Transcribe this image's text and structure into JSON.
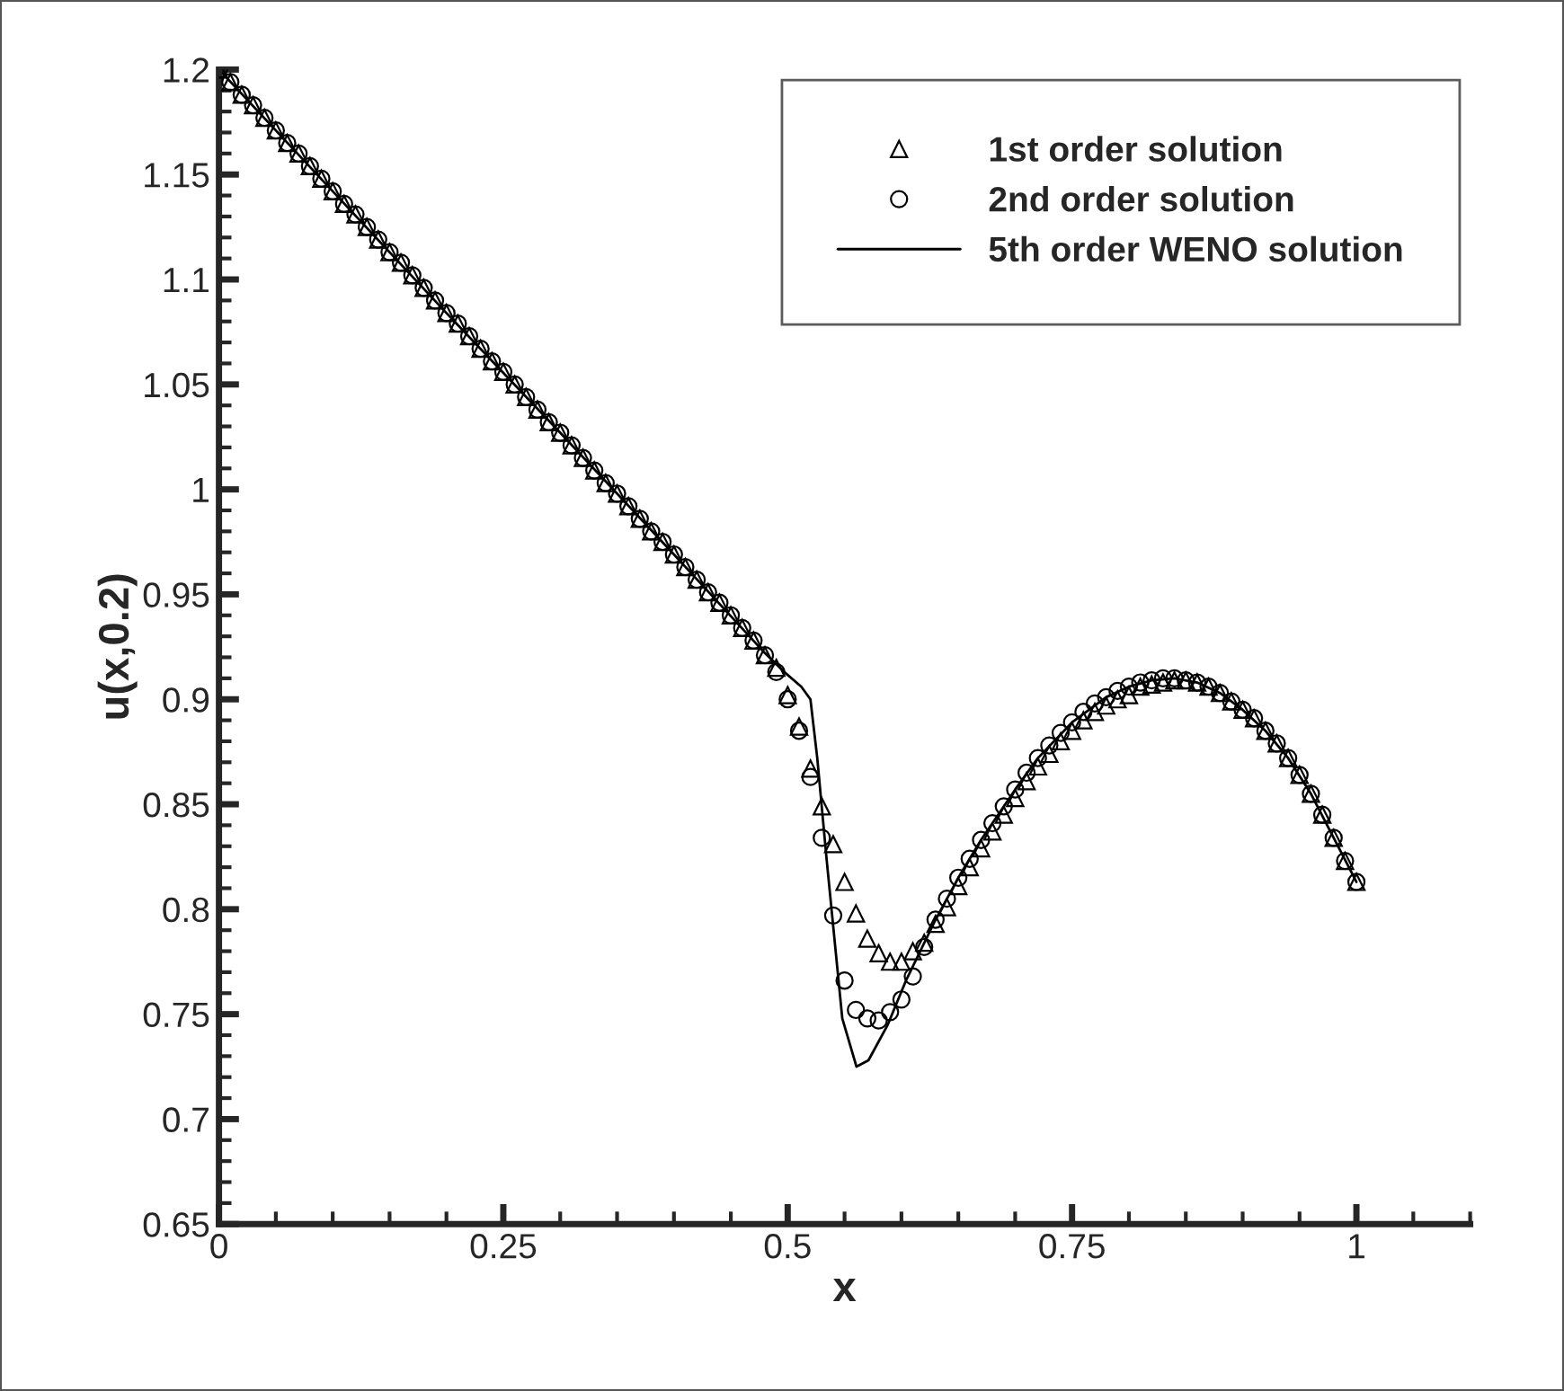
{
  "chart_data": {
    "type": "scatter",
    "xlabel": "x",
    "ylabel": "u(x,0.2)",
    "xlim": [
      0,
      1.1
    ],
    "ylim": [
      0.65,
      1.2
    ],
    "xticks": [
      0,
      0.25,
      0.5,
      0.75,
      1,
      {
        "value": 0.05,
        "label": null
      },
      {
        "value": 0.1,
        "label": null
      },
      {
        "value": 0.15,
        "label": null
      },
      {
        "value": 0.2,
        "label": null
      },
      {
        "value": 0.3,
        "label": null
      },
      {
        "value": 0.35,
        "label": null
      },
      {
        "value": 0.4,
        "label": null
      },
      {
        "value": 0.45,
        "label": null
      },
      {
        "value": 0.55,
        "label": null
      },
      {
        "value": 0.6,
        "label": null
      },
      {
        "value": 0.65,
        "label": null
      },
      {
        "value": 0.7,
        "label": null
      },
      {
        "value": 0.8,
        "label": null
      },
      {
        "value": 0.85,
        "label": null
      },
      {
        "value": 0.9,
        "label": null
      },
      {
        "value": 0.95,
        "label": null
      },
      {
        "value": 1.05,
        "label": null
      },
      {
        "value": 1.1,
        "label": null
      }
    ],
    "yticks": [
      0.65,
      0.7,
      0.75,
      0.8,
      0.85,
      0.9,
      0.95,
      1,
      1.05,
      1.1,
      1.15,
      1.2,
      {
        "value": 0.66,
        "label": null
      },
      {
        "value": 0.67,
        "label": null
      },
      {
        "value": 0.68,
        "label": null
      },
      {
        "value": 0.69,
        "label": null
      },
      {
        "value": 0.71,
        "label": null
      },
      {
        "value": 0.72,
        "label": null
      },
      {
        "value": 0.73,
        "label": null
      },
      {
        "value": 0.74,
        "label": null
      },
      {
        "value": 0.76,
        "label": null
      },
      {
        "value": 0.77,
        "label": null
      },
      {
        "value": 0.78,
        "label": null
      },
      {
        "value": 0.79,
        "label": null
      },
      {
        "value": 0.81,
        "label": null
      },
      {
        "value": 0.82,
        "label": null
      },
      {
        "value": 0.83,
        "label": null
      },
      {
        "value": 0.84,
        "label": null
      },
      {
        "value": 0.86,
        "label": null
      },
      {
        "value": 0.87,
        "label": null
      },
      {
        "value": 0.88,
        "label": null
      },
      {
        "value": 0.89,
        "label": null
      },
      {
        "value": 0.91,
        "label": null
      },
      {
        "value": 0.92,
        "label": null
      },
      {
        "value": 0.93,
        "label": null
      },
      {
        "value": 0.94,
        "label": null
      },
      {
        "value": 0.96,
        "label": null
      },
      {
        "value": 0.97,
        "label": null
      },
      {
        "value": 0.98,
        "label": null
      },
      {
        "value": 0.99,
        "label": null
      },
      {
        "value": 1.01,
        "label": null
      },
      {
        "value": 1.02,
        "label": null
      },
      {
        "value": 1.03,
        "label": null
      },
      {
        "value": 1.04,
        "label": null
      },
      {
        "value": 1.06,
        "label": null
      },
      {
        "value": 1.07,
        "label": null
      },
      {
        "value": 1.08,
        "label": null
      },
      {
        "value": 1.09,
        "label": null
      },
      {
        "value": 1.11,
        "label": null
      },
      {
        "value": 1.12,
        "label": null
      },
      {
        "value": 1.13,
        "label": null
      },
      {
        "value": 1.14,
        "label": null
      },
      {
        "value": 1.16,
        "label": null
      },
      {
        "value": 1.17,
        "label": null
      },
      {
        "value": 1.18,
        "label": null
      },
      {
        "value": 1.19,
        "label": null
      }
    ],
    "x": [
      0,
      0.01,
      0.02,
      0.03,
      0.04,
      0.05,
      0.06,
      0.07,
      0.08,
      0.09,
      0.1,
      0.11,
      0.12,
      0.13,
      0.14,
      0.15,
      0.16,
      0.17,
      0.18,
      0.19,
      0.2,
      0.21,
      0.22,
      0.23,
      0.24,
      0.25,
      0.26,
      0.27,
      0.28,
      0.29,
      0.3,
      0.31,
      0.32,
      0.33,
      0.34,
      0.35,
      0.36,
      0.37,
      0.38,
      0.39,
      0.4,
      0.41,
      0.42,
      0.43,
      0.44,
      0.45,
      0.46,
      0.47,
      0.48,
      0.49,
      0.5,
      0.51,
      0.52,
      0.53,
      0.54,
      0.55,
      0.56,
      0.57,
      0.58,
      0.59,
      0.6,
      0.61,
      0.62,
      0.63,
      0.64,
      0.65,
      0.66,
      0.67,
      0.68,
      0.69,
      0.7,
      0.71,
      0.72,
      0.73,
      0.74,
      0.75,
      0.76,
      0.77,
      0.78,
      0.79,
      0.8,
      0.81,
      0.82,
      0.83,
      0.84,
      0.85,
      0.86,
      0.87,
      0.88,
      0.89,
      0.9,
      0.91,
      0.92,
      0.93,
      0.94,
      0.95,
      0.96,
      0.97,
      0.98,
      0.99,
      1
    ],
    "legend": "top right",
    "series": [
      {
        "name": "1st order solution",
        "color": "#000000",
        "marker": "triangle",
        "values": [
          1.2,
          1.194,
          1.188,
          1.183,
          1.177,
          1.171,
          1.165,
          1.16,
          1.154,
          1.148,
          1.142,
          1.136,
          1.131,
          1.125,
          1.119,
          1.113,
          1.108,
          1.102,
          1.096,
          1.09,
          1.084,
          1.079,
          1.073,
          1.067,
          1.061,
          1.056,
          1.05,
          1.044,
          1.038,
          1.032,
          1.027,
          1.021,
          1.015,
          1.009,
          1.003,
          0.998,
          0.992,
          0.986,
          0.98,
          0.975,
          0.969,
          0.963,
          0.957,
          0.951,
          0.946,
          0.94,
          0.934,
          0.928,
          0.921,
          0.915,
          0.902,
          0.887,
          0.867,
          0.849,
          0.831,
          0.813,
          0.798,
          0.786,
          0.779,
          0.775,
          0.775,
          0.78,
          0.784,
          0.793,
          0.801,
          0.811,
          0.82,
          0.829,
          0.837,
          0.845,
          0.853,
          0.861,
          0.868,
          0.874,
          0.88,
          0.885,
          0.89,
          0.894,
          0.897,
          0.9,
          0.902,
          0.906,
          0.907,
          0.908,
          0.909,
          0.909,
          0.908,
          0.906,
          0.903,
          0.899,
          0.895,
          0.891,
          0.885,
          0.879,
          0.872,
          0.864,
          0.855,
          0.845,
          0.834,
          0.823,
          0.813
        ]
      },
      {
        "name": "2nd order solution",
        "color": "#000000",
        "marker": "circle",
        "values": [
          1.2,
          1.194,
          1.188,
          1.183,
          1.177,
          1.171,
          1.165,
          1.16,
          1.154,
          1.148,
          1.142,
          1.136,
          1.131,
          1.125,
          1.119,
          1.113,
          1.108,
          1.102,
          1.096,
          1.09,
          1.084,
          1.079,
          1.073,
          1.067,
          1.061,
          1.056,
          1.05,
          1.044,
          1.038,
          1.032,
          1.027,
          1.021,
          1.015,
          1.009,
          1.003,
          0.998,
          0.992,
          0.986,
          0.98,
          0.975,
          0.969,
          0.963,
          0.957,
          0.951,
          0.946,
          0.94,
          0.934,
          0.928,
          0.921,
          0.913,
          0.9,
          0.885,
          0.863,
          0.834,
          0.797,
          0.766,
          0.752,
          0.748,
          0.747,
          0.751,
          0.757,
          0.768,
          0.782,
          0.795,
          0.805,
          0.815,
          0.824,
          0.833,
          0.841,
          0.849,
          0.857,
          0.865,
          0.872,
          0.878,
          0.884,
          0.889,
          0.894,
          0.898,
          0.901,
          0.904,
          0.906,
          0.908,
          0.909,
          0.91,
          0.91,
          0.909,
          0.908,
          0.906,
          0.903,
          0.899,
          0.895,
          0.891,
          0.885,
          0.879,
          0.872,
          0.864,
          0.855,
          0.845,
          0.834,
          0.823,
          0.813
        ]
      },
      {
        "name": "5th order WENO solution",
        "color": "#000000",
        "type": "line",
        "marker": "none",
        "line_style": "solid",
        "x": [
          0,
          0.1,
          0.2,
          0.3,
          0.4,
          0.48,
          0.497,
          0.512,
          0.52,
          0.526,
          0.534,
          0.548,
          0.5605,
          0.571,
          0.588,
          0.604,
          0.63,
          0.65,
          0.67,
          0.7,
          0.72,
          0.75,
          0.78,
          0.8,
          0.82,
          0.84,
          0.86,
          0.88,
          0.9,
          0.92,
          0.94,
          0.96,
          0.98,
          1
        ],
        "values": [
          1.2,
          1.142,
          1.084,
          1.027,
          0.969,
          0.922,
          0.913,
          0.906,
          0.9,
          0.872,
          0.825,
          0.748,
          0.725,
          0.728,
          0.745,
          0.766,
          0.795,
          0.815,
          0.833,
          0.857,
          0.872,
          0.889,
          0.901,
          0.906,
          0.909,
          0.91,
          0.908,
          0.903,
          0.895,
          0.885,
          0.872,
          0.855,
          0.834,
          0.813
        ]
      }
    ]
  }
}
